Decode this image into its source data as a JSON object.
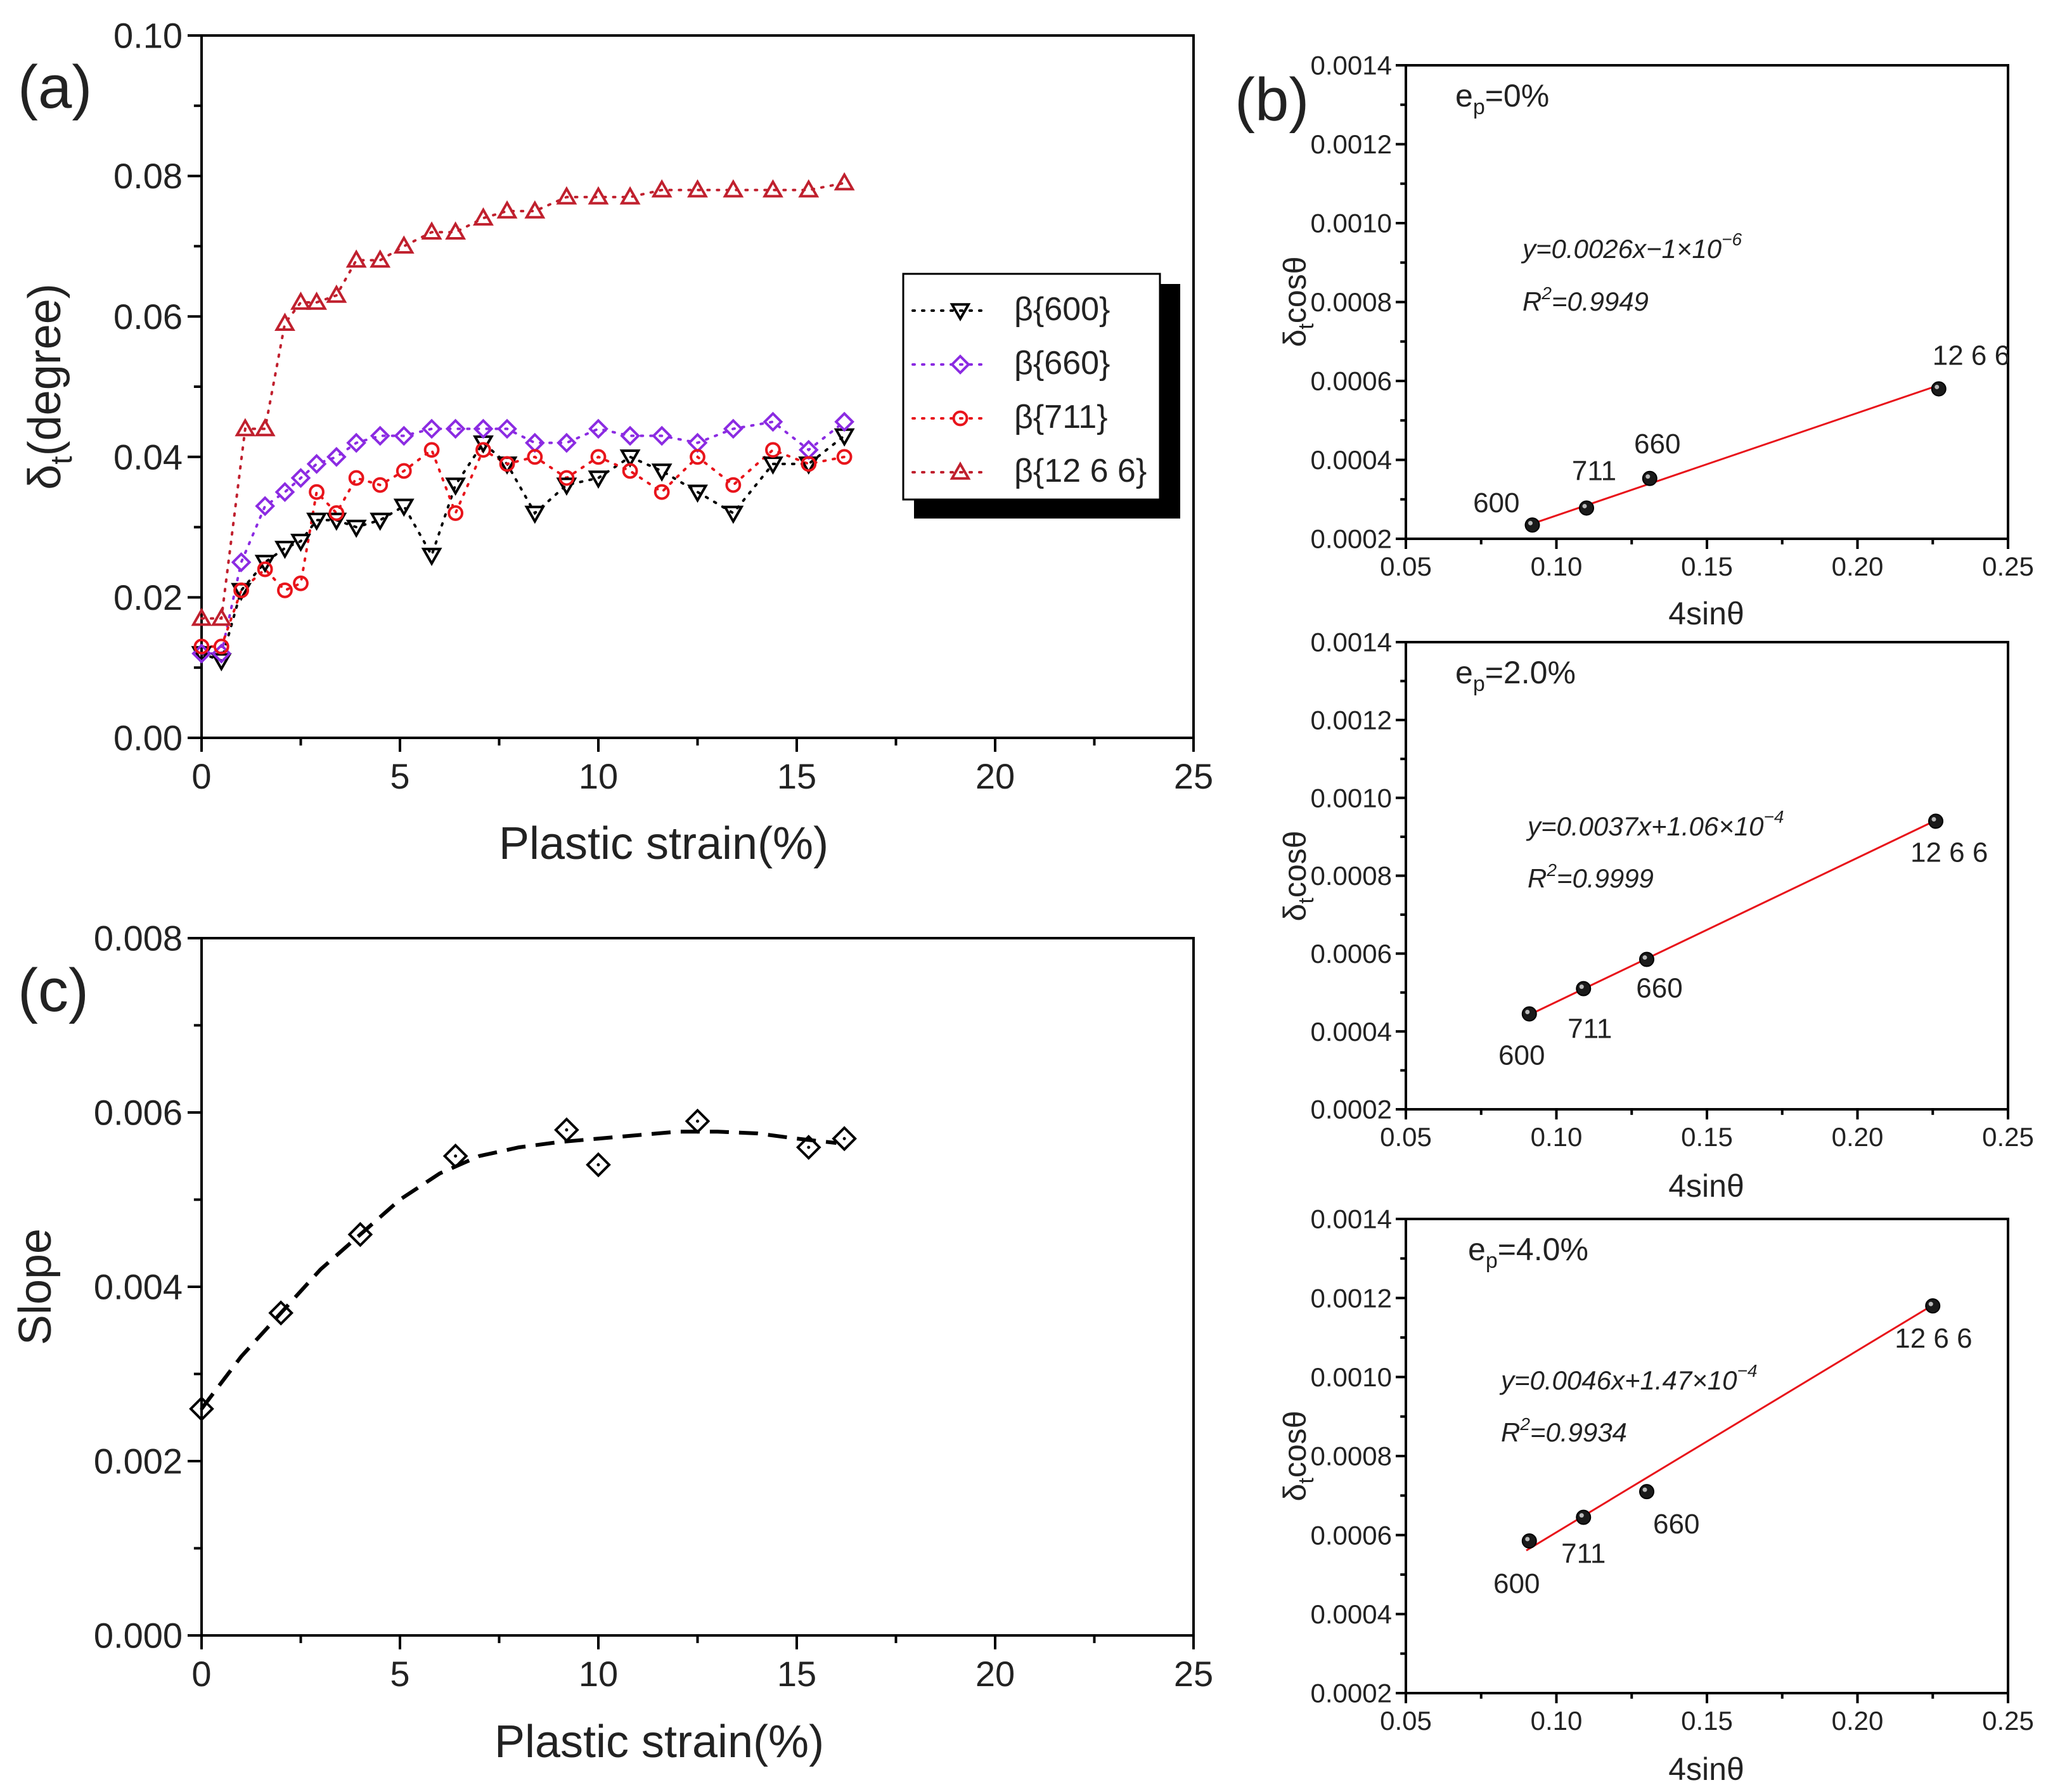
{
  "panel_labels": {
    "a": "(a)",
    "b": "(b)",
    "c": "(c)"
  },
  "colors": {
    "b600": "#000000",
    "b660": "#8B2BE2",
    "b711": "#E8141B",
    "b1266": "#C0202E",
    "fit": "#E8141B",
    "slope": "#000000"
  },
  "chart_data": [
    {
      "id": "a",
      "type": "scatter",
      "title": "",
      "xlabel": "Plastic strain(%)",
      "ylabel_main": "δ",
      "ylabel_sub": "t",
      "ylabel_rest": "(degree)",
      "xlim": [
        0,
        25
      ],
      "ylim": [
        0,
        0.1
      ],
      "xticks": [
        "0",
        "5",
        "10",
        "15",
        "20",
        "25"
      ],
      "yticks": [
        "0.00",
        "0.02",
        "0.04",
        "0.06",
        "0.08",
        "0.10"
      ],
      "legend_position": "right",
      "series": [
        {
          "name": "β{600}",
          "marker": "triangle-down",
          "color_key": "b600",
          "x": [
            0,
            0.5,
            1,
            1.6,
            2.1,
            2.5,
            2.9,
            3.4,
            3.9,
            4.5,
            5.1,
            5.8,
            6.4,
            7.1,
            7.7,
            8.4,
            9.2,
            10,
            10.8,
            11.6,
            12.5,
            13.4,
            14.4,
            15.3,
            16.2
          ],
          "y": [
            0.012,
            0.011,
            0.021,
            0.025,
            0.027,
            0.028,
            0.031,
            0.031,
            0.03,
            0.031,
            0.033,
            0.026,
            0.036,
            0.042,
            0.039,
            0.032,
            0.036,
            0.037,
            0.04,
            0.038,
            0.035,
            0.032,
            0.039,
            0.039,
            0.043
          ]
        },
        {
          "name": "β{660}",
          "marker": "diamond",
          "color_key": "b660",
          "x": [
            0,
            0.5,
            1,
            1.6,
            2.1,
            2.5,
            2.9,
            3.4,
            3.9,
            4.5,
            5.1,
            5.8,
            6.4,
            7.1,
            7.7,
            8.4,
            9.2,
            10,
            10.8,
            11.6,
            12.5,
            13.4,
            14.4,
            15.3,
            16.2
          ],
          "y": [
            0.012,
            0.012,
            0.025,
            0.033,
            0.035,
            0.037,
            0.039,
            0.04,
            0.042,
            0.043,
            0.043,
            0.044,
            0.044,
            0.044,
            0.044,
            0.042,
            0.042,
            0.044,
            0.043,
            0.043,
            0.042,
            0.044,
            0.045,
            0.041,
            0.045
          ]
        },
        {
          "name": "β{711}",
          "marker": "circle",
          "color_key": "b711",
          "x": [
            0,
            0.5,
            1,
            1.6,
            2.1,
            2.5,
            2.9,
            3.4,
            3.9,
            4.5,
            5.1,
            5.8,
            6.4,
            7.1,
            7.7,
            8.4,
            9.2,
            10,
            10.8,
            11.6,
            12.5,
            13.4,
            14.4,
            15.3,
            16.2
          ],
          "y": [
            0.013,
            0.013,
            0.021,
            0.024,
            0.021,
            0.022,
            0.035,
            0.032,
            0.037,
            0.036,
            0.038,
            0.041,
            0.032,
            0.041,
            0.039,
            0.04,
            0.037,
            0.04,
            0.038,
            0.035,
            0.04,
            0.036,
            0.041,
            0.039,
            0.04
          ]
        },
        {
          "name": "β{12 6 6}",
          "marker": "triangle-up",
          "color_key": "b1266",
          "x": [
            0,
            0.5,
            1.1,
            1.6,
            2.1,
            2.5,
            2.9,
            3.4,
            3.9,
            4.5,
            5.1,
            5.8,
            6.4,
            7.1,
            7.7,
            8.4,
            9.2,
            10,
            10.8,
            11.6,
            12.5,
            13.4,
            14.4,
            15.3,
            16.2
          ],
          "y": [
            0.017,
            0.017,
            0.044,
            0.044,
            0.059,
            0.062,
            0.062,
            0.063,
            0.068,
            0.068,
            0.07,
            0.072,
            0.072,
            0.074,
            0.075,
            0.075,
            0.077,
            0.077,
            0.077,
            0.078,
            0.078,
            0.078,
            0.078,
            0.078,
            0.079
          ]
        }
      ]
    },
    {
      "id": "c",
      "type": "scatter",
      "xlabel": "Plastic strain(%)",
      "ylabel": "Slope",
      "xlim": [
        0,
        25
      ],
      "ylim": [
        0,
        0.008
      ],
      "xticks": [
        "0",
        "5",
        "10",
        "15",
        "20",
        "25"
      ],
      "yticks": [
        "0.000",
        "0.002",
        "0.004",
        "0.006",
        "0.008"
      ],
      "series": [
        {
          "name": "Slope",
          "marker": "diamond",
          "x": [
            0,
            2,
            4,
            6.4,
            9.2,
            10,
            12.5,
            15.3,
            16.2
          ],
          "y": [
            0.0026,
            0.0037,
            0.0046,
            0.0055,
            0.0058,
            0.0054,
            0.0059,
            0.0056,
            0.0057
          ]
        }
      ],
      "trend": {
        "x": [
          0,
          1,
          2,
          3,
          4,
          5,
          6,
          7,
          8,
          9,
          10,
          11,
          12,
          13,
          14,
          15,
          16
        ],
        "y": [
          0.0026,
          0.0032,
          0.0037,
          0.0042,
          0.0046,
          0.005,
          0.0053,
          0.0055,
          0.0056,
          0.00566,
          0.0057,
          0.00574,
          0.00578,
          0.00578,
          0.00576,
          0.0057,
          0.00565
        ]
      }
    },
    {
      "id": "b1",
      "type": "scatter",
      "ep_main": "e",
      "ep_sub": "p",
      "ep_rest": "=0%",
      "equation": "y=0.0026x−1×10",
      "equation_exp": "−6",
      "r2_main": "R",
      "r2_sup": "2",
      "r2_rest": "=0.9949",
      "xlabel": "4sinθ",
      "ylabel_main": "δ",
      "ylabel_sub": "t",
      "ylabel_rest": "cosθ",
      "xlim": [
        0.05,
        0.25
      ],
      "ylim": [
        0.0002,
        0.0014
      ],
      "xticks": [
        "0.05",
        "0.10",
        "0.15",
        "0.20",
        "0.25"
      ],
      "yticks": [
        "0.0002",
        "0.0004",
        "0.0006",
        "0.0008",
        "0.0010",
        "0.0012",
        "0.0014"
      ],
      "points": {
        "x": [
          0.092,
          0.11,
          0.131,
          0.227
        ],
        "y": [
          0.000235,
          0.000278,
          0.000353,
          0.00058
        ]
      },
      "point_labels": [
        "600",
        "711",
        "660",
        "12 6 6"
      ],
      "fit": {
        "slope": 0.0026,
        "intercept": -1e-06
      }
    },
    {
      "id": "b2",
      "type": "scatter",
      "ep_main": "e",
      "ep_sub": "p",
      "ep_rest": "=2.0%",
      "equation": "y=0.0037x+1.06×10",
      "equation_exp": "−4",
      "r2_main": "R",
      "r2_sup": "2",
      "r2_rest": "=0.9999",
      "xlabel": "4sinθ",
      "ylabel_main": "δ",
      "ylabel_sub": "t",
      "ylabel_rest": "cosθ",
      "xlim": [
        0.05,
        0.25
      ],
      "ylim": [
        0.0002,
        0.0014
      ],
      "xticks": [
        "0.05",
        "0.10",
        "0.15",
        "0.20",
        "0.25"
      ],
      "yticks": [
        "0.0002",
        "0.0004",
        "0.0006",
        "0.0008",
        "0.0010",
        "0.0012",
        "0.0014"
      ],
      "points": {
        "x": [
          0.091,
          0.109,
          0.13,
          0.226
        ],
        "y": [
          0.000445,
          0.00051,
          0.000585,
          0.00094
        ]
      },
      "point_labels": [
        "600",
        "711",
        "660",
        "12 6 6"
      ],
      "fit": {
        "slope": 0.0037,
        "intercept": 0.000106
      }
    },
    {
      "id": "b3",
      "type": "scatter",
      "ep_main": "e",
      "ep_sub": "p",
      "ep_rest": "=4.0%",
      "equation": "y=0.0046x+1.47×10",
      "equation_exp": "−4",
      "r2_main": "R",
      "r2_sup": "2",
      "r2_rest": "=0.9934",
      "xlabel": "4sinθ",
      "ylabel_main": "δ",
      "ylabel_sub": "t",
      "ylabel_rest": "cosθ",
      "xlim": [
        0.05,
        0.25
      ],
      "ylim": [
        0.0002,
        0.0014
      ],
      "xticks": [
        "0.05",
        "0.10",
        "0.15",
        "0.20",
        "0.25"
      ],
      "yticks": [
        "0.0002",
        "0.0004",
        "0.0006",
        "0.0008",
        "0.0010",
        "0.0012",
        "0.0014"
      ],
      "points": {
        "x": [
          0.091,
          0.109,
          0.13,
          0.225
        ],
        "y": [
          0.000585,
          0.000645,
          0.00071,
          0.00118
        ]
      },
      "point_labels": [
        "600",
        "711",
        "660",
        "12 6 6"
      ],
      "fit": {
        "slope": 0.0046,
        "intercept": 0.000147
      }
    }
  ]
}
